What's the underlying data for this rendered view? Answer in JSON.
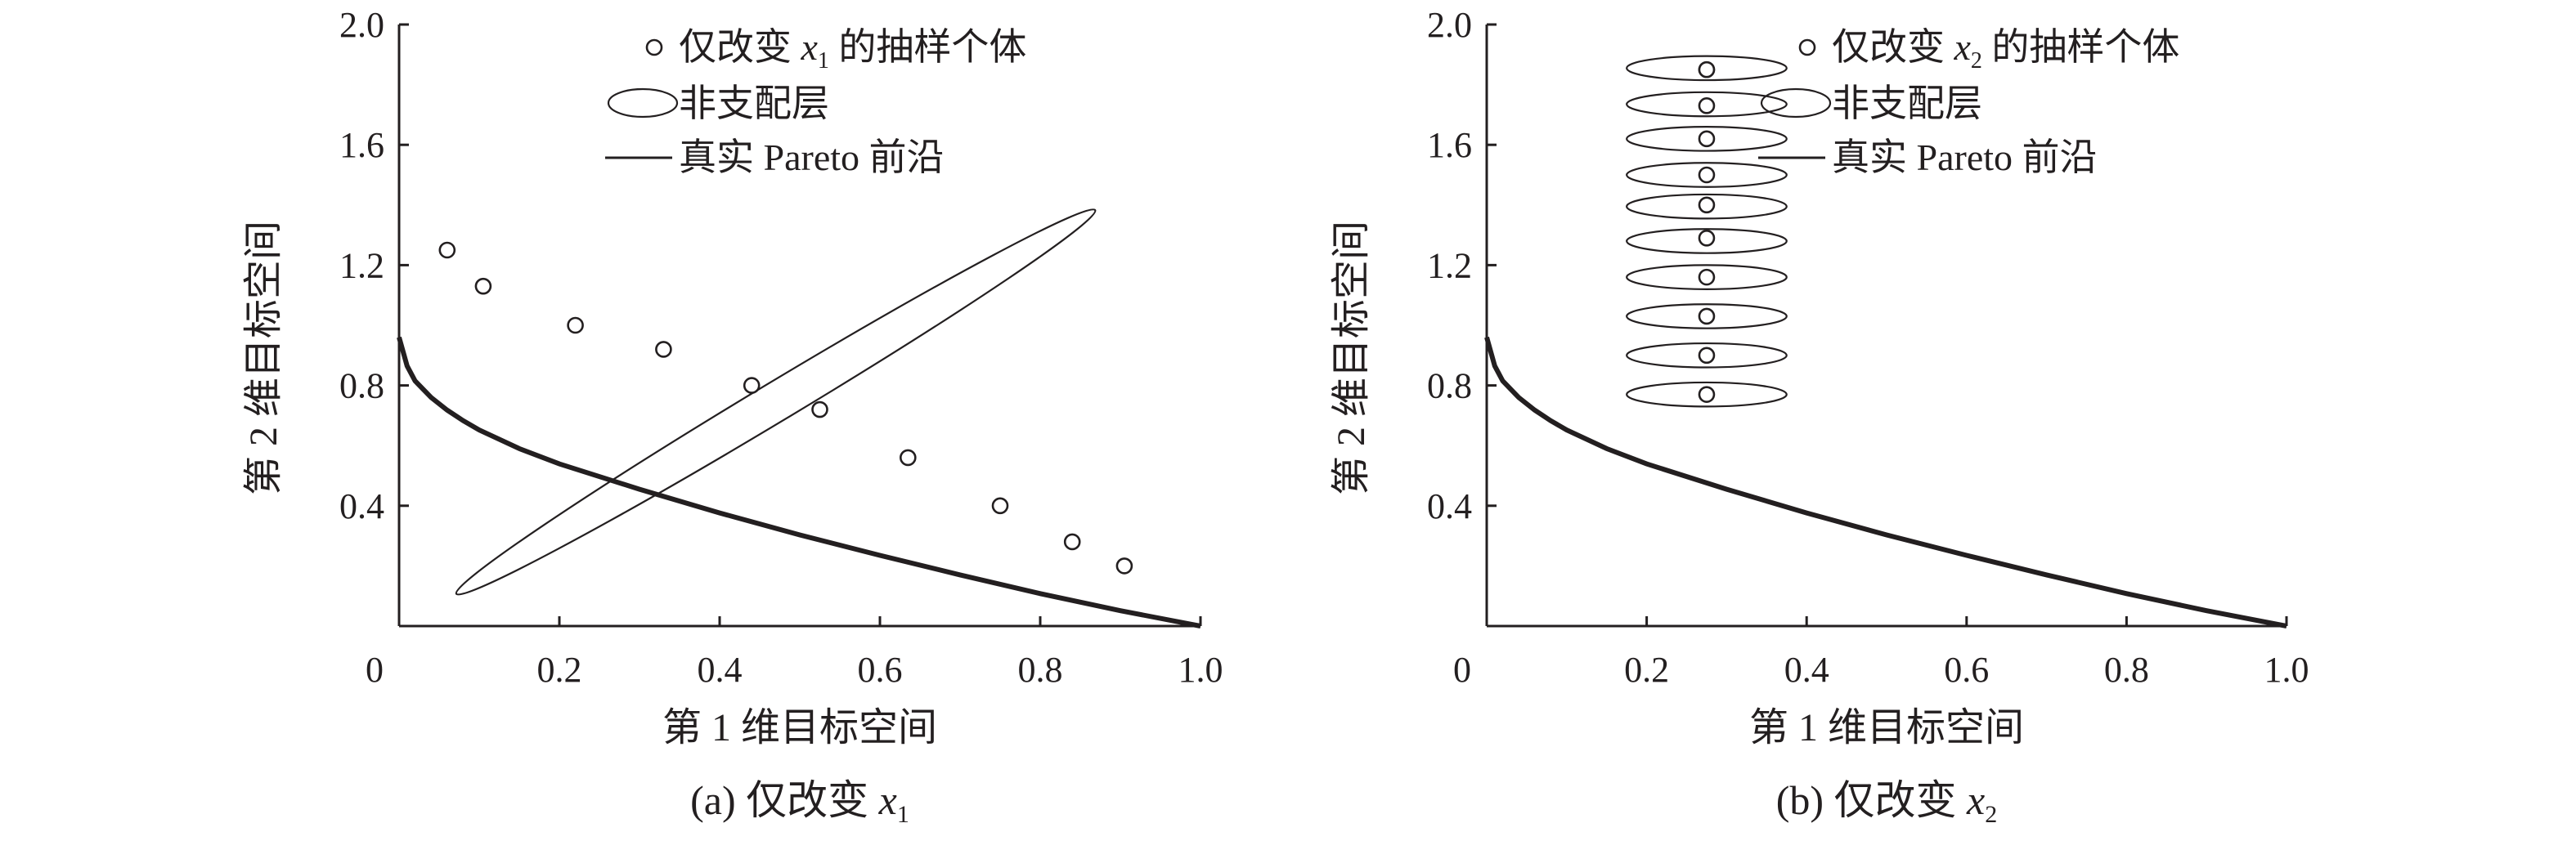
{
  "chart_data": [
    {
      "type": "scatter",
      "panel": "a",
      "caption": "(a) 仅改变 x1",
      "caption_main": "(a) 仅改变 ",
      "caption_var": "x",
      "caption_sub": "1",
      "xlabel": "第 1 维目标空间",
      "ylabel": "第 2 维目标空间",
      "xlim": [
        0,
        1.0
      ],
      "ylim": [
        0,
        2.0
      ],
      "x_ticks": [
        0.2,
        0.4,
        0.6,
        0.8,
        1.0
      ],
      "x_tick_labels": [
        "0",
        "0.2",
        "0.4",
        "0.6",
        "0.8",
        "1.0"
      ],
      "y_ticks": [
        0.4,
        0.8,
        1.2,
        1.6,
        2.0
      ],
      "y_tick_labels": [
        "0.4",
        "0.8",
        "1.2",
        "1.6",
        "2.0"
      ],
      "legend_position": "top-right",
      "legend": {
        "samples": "仅改变 x1 的抽样个体",
        "samples_pre": "仅改变 ",
        "samples_var": "x",
        "samples_sub": "1",
        "samples_post": " 的抽样个体",
        "layer": "非支配层",
        "front": "真实 Pareto 前沿"
      },
      "series": [
        {
          "name": "仅改变 x1 的抽样个体",
          "kind": "points",
          "x": [
            0.06,
            0.105,
            0.22,
            0.33,
            0.44,
            0.525,
            0.635,
            0.75,
            0.84,
            0.905
          ],
          "y": [
            1.25,
            1.13,
            1.0,
            0.92,
            0.8,
            0.72,
            0.56,
            0.4,
            0.28,
            0.2
          ]
        },
        {
          "name": "非支配层",
          "kind": "ellipse",
          "layers": [
            {
              "cx": 0.47,
              "cy": 0.745,
              "rx_x": 0.465,
              "ry_y": 0.065,
              "angle_deg": -31.0
            }
          ]
        },
        {
          "name": "真实 Pareto 前沿",
          "kind": "curve",
          "x": [
            0,
            0.01,
            0.02,
            0.04,
            0.06,
            0.08,
            0.1,
            0.15,
            0.2,
            0.3,
            0.4,
            0.5,
            0.6,
            0.7,
            0.8,
            0.9,
            1.0
          ],
          "y": [
            0.96,
            0.865,
            0.815,
            0.76,
            0.718,
            0.683,
            0.652,
            0.59,
            0.539,
            0.455,
            0.376,
            0.303,
            0.235,
            0.17,
            0.108,
            0.051,
            0
          ]
        }
      ]
    },
    {
      "type": "scatter",
      "panel": "b",
      "caption": "(b) 仅改变 x2",
      "caption_main": "(b) 仅改变 ",
      "caption_var": "x",
      "caption_sub": "2",
      "xlabel": "第 1 维目标空间",
      "ylabel": "第 2 维目标空间",
      "xlim": [
        0,
        1.0
      ],
      "ylim": [
        0,
        2.0
      ],
      "x_ticks": [
        0.2,
        0.4,
        0.6,
        0.8,
        1.0
      ],
      "x_tick_labels": [
        "0",
        "0.2",
        "0.4",
        "0.6",
        "0.8",
        "1.0"
      ],
      "y_ticks": [
        0.4,
        0.8,
        1.2,
        1.6,
        2.0
      ],
      "y_tick_labels": [
        "0.4",
        "0.8",
        "1.2",
        "1.6",
        "2.0"
      ],
      "legend_position": "top-right",
      "legend": {
        "samples": "仅改变 x2 的抽样个体",
        "samples_pre": "仅改变 ",
        "samples_var": "x",
        "samples_sub": "2",
        "samples_post": " 的抽样个体",
        "layer": "非支配层",
        "front": "真实 Pareto 前沿"
      },
      "series": [
        {
          "name": "仅改变 x2 的抽样个体",
          "kind": "points",
          "x": [
            0.275,
            0.275,
            0.275,
            0.275,
            0.275,
            0.275,
            0.275,
            0.275,
            0.275,
            0.275,
            0.275
          ],
          "y": [
            1.85,
            1.73,
            1.62,
            1.5,
            1.4,
            1.29,
            1.16,
            1.03,
            0.9,
            0.77,
            1.85
          ]
        },
        {
          "name": "非支配层",
          "kind": "ellipse",
          "layers": [
            {
              "cx": 0.275,
              "cy": 1.855,
              "rx_x": 0.1,
              "ry_y": 0.04,
              "angle_deg": 0
            },
            {
              "cx": 0.275,
              "cy": 1.735,
              "rx_x": 0.1,
              "ry_y": 0.04,
              "angle_deg": 0
            },
            {
              "cx": 0.275,
              "cy": 1.62,
              "rx_x": 0.1,
              "ry_y": 0.04,
              "angle_deg": 0
            },
            {
              "cx": 0.275,
              "cy": 1.5,
              "rx_x": 0.1,
              "ry_y": 0.04,
              "angle_deg": 0
            },
            {
              "cx": 0.275,
              "cy": 1.395,
              "rx_x": 0.1,
              "ry_y": 0.04,
              "angle_deg": 0
            },
            {
              "cx": 0.275,
              "cy": 1.28,
              "rx_x": 0.1,
              "ry_y": 0.04,
              "angle_deg": 0
            },
            {
              "cx": 0.275,
              "cy": 1.16,
              "rx_x": 0.1,
              "ry_y": 0.04,
              "angle_deg": 0
            },
            {
              "cx": 0.275,
              "cy": 1.03,
              "rx_x": 0.1,
              "ry_y": 0.04,
              "angle_deg": 0
            },
            {
              "cx": 0.275,
              "cy": 0.9,
              "rx_x": 0.1,
              "ry_y": 0.04,
              "angle_deg": 0
            },
            {
              "cx": 0.275,
              "cy": 0.77,
              "rx_x": 0.1,
              "ry_y": 0.04,
              "angle_deg": 0
            }
          ]
        },
        {
          "name": "真实 Pareto 前沿",
          "kind": "curve",
          "x": [
            0,
            0.01,
            0.02,
            0.04,
            0.06,
            0.08,
            0.1,
            0.15,
            0.2,
            0.3,
            0.4,
            0.5,
            0.6,
            0.7,
            0.8,
            0.9,
            1.0
          ],
          "y": [
            0.96,
            0.865,
            0.815,
            0.76,
            0.718,
            0.683,
            0.652,
            0.59,
            0.539,
            0.455,
            0.376,
            0.303,
            0.235,
            0.17,
            0.108,
            0.051,
            0
          ]
        }
      ]
    }
  ]
}
